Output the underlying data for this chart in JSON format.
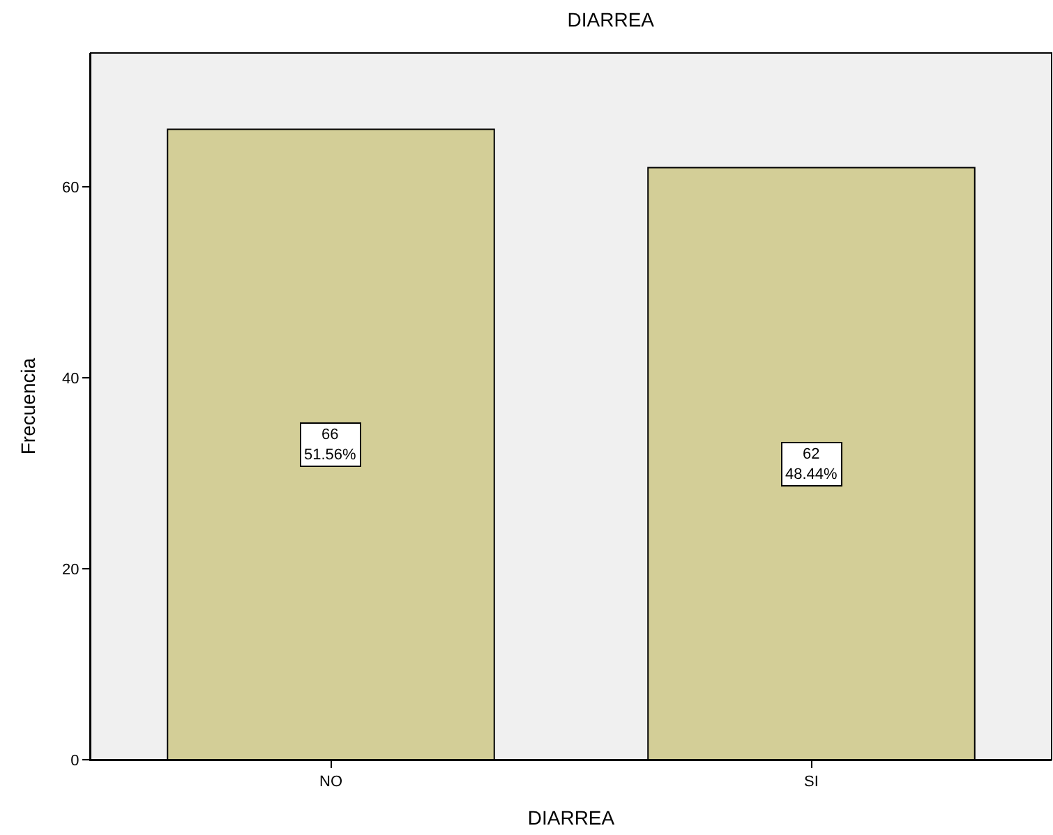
{
  "chart_data": {
    "type": "bar",
    "title": "DIARREA",
    "xlabel": "DIARREA",
    "ylabel": "Frecuencia",
    "categories": [
      "NO",
      "SI"
    ],
    "values": [
      66,
      62
    ],
    "value_labels": [
      "66\n51.56%",
      "62\n48.44%"
    ],
    "color": "#d3ce97",
    "ylim": [
      0,
      74
    ],
    "yticks": [
      0,
      20,
      40,
      60
    ],
    "grid": false,
    "legend": false
  }
}
